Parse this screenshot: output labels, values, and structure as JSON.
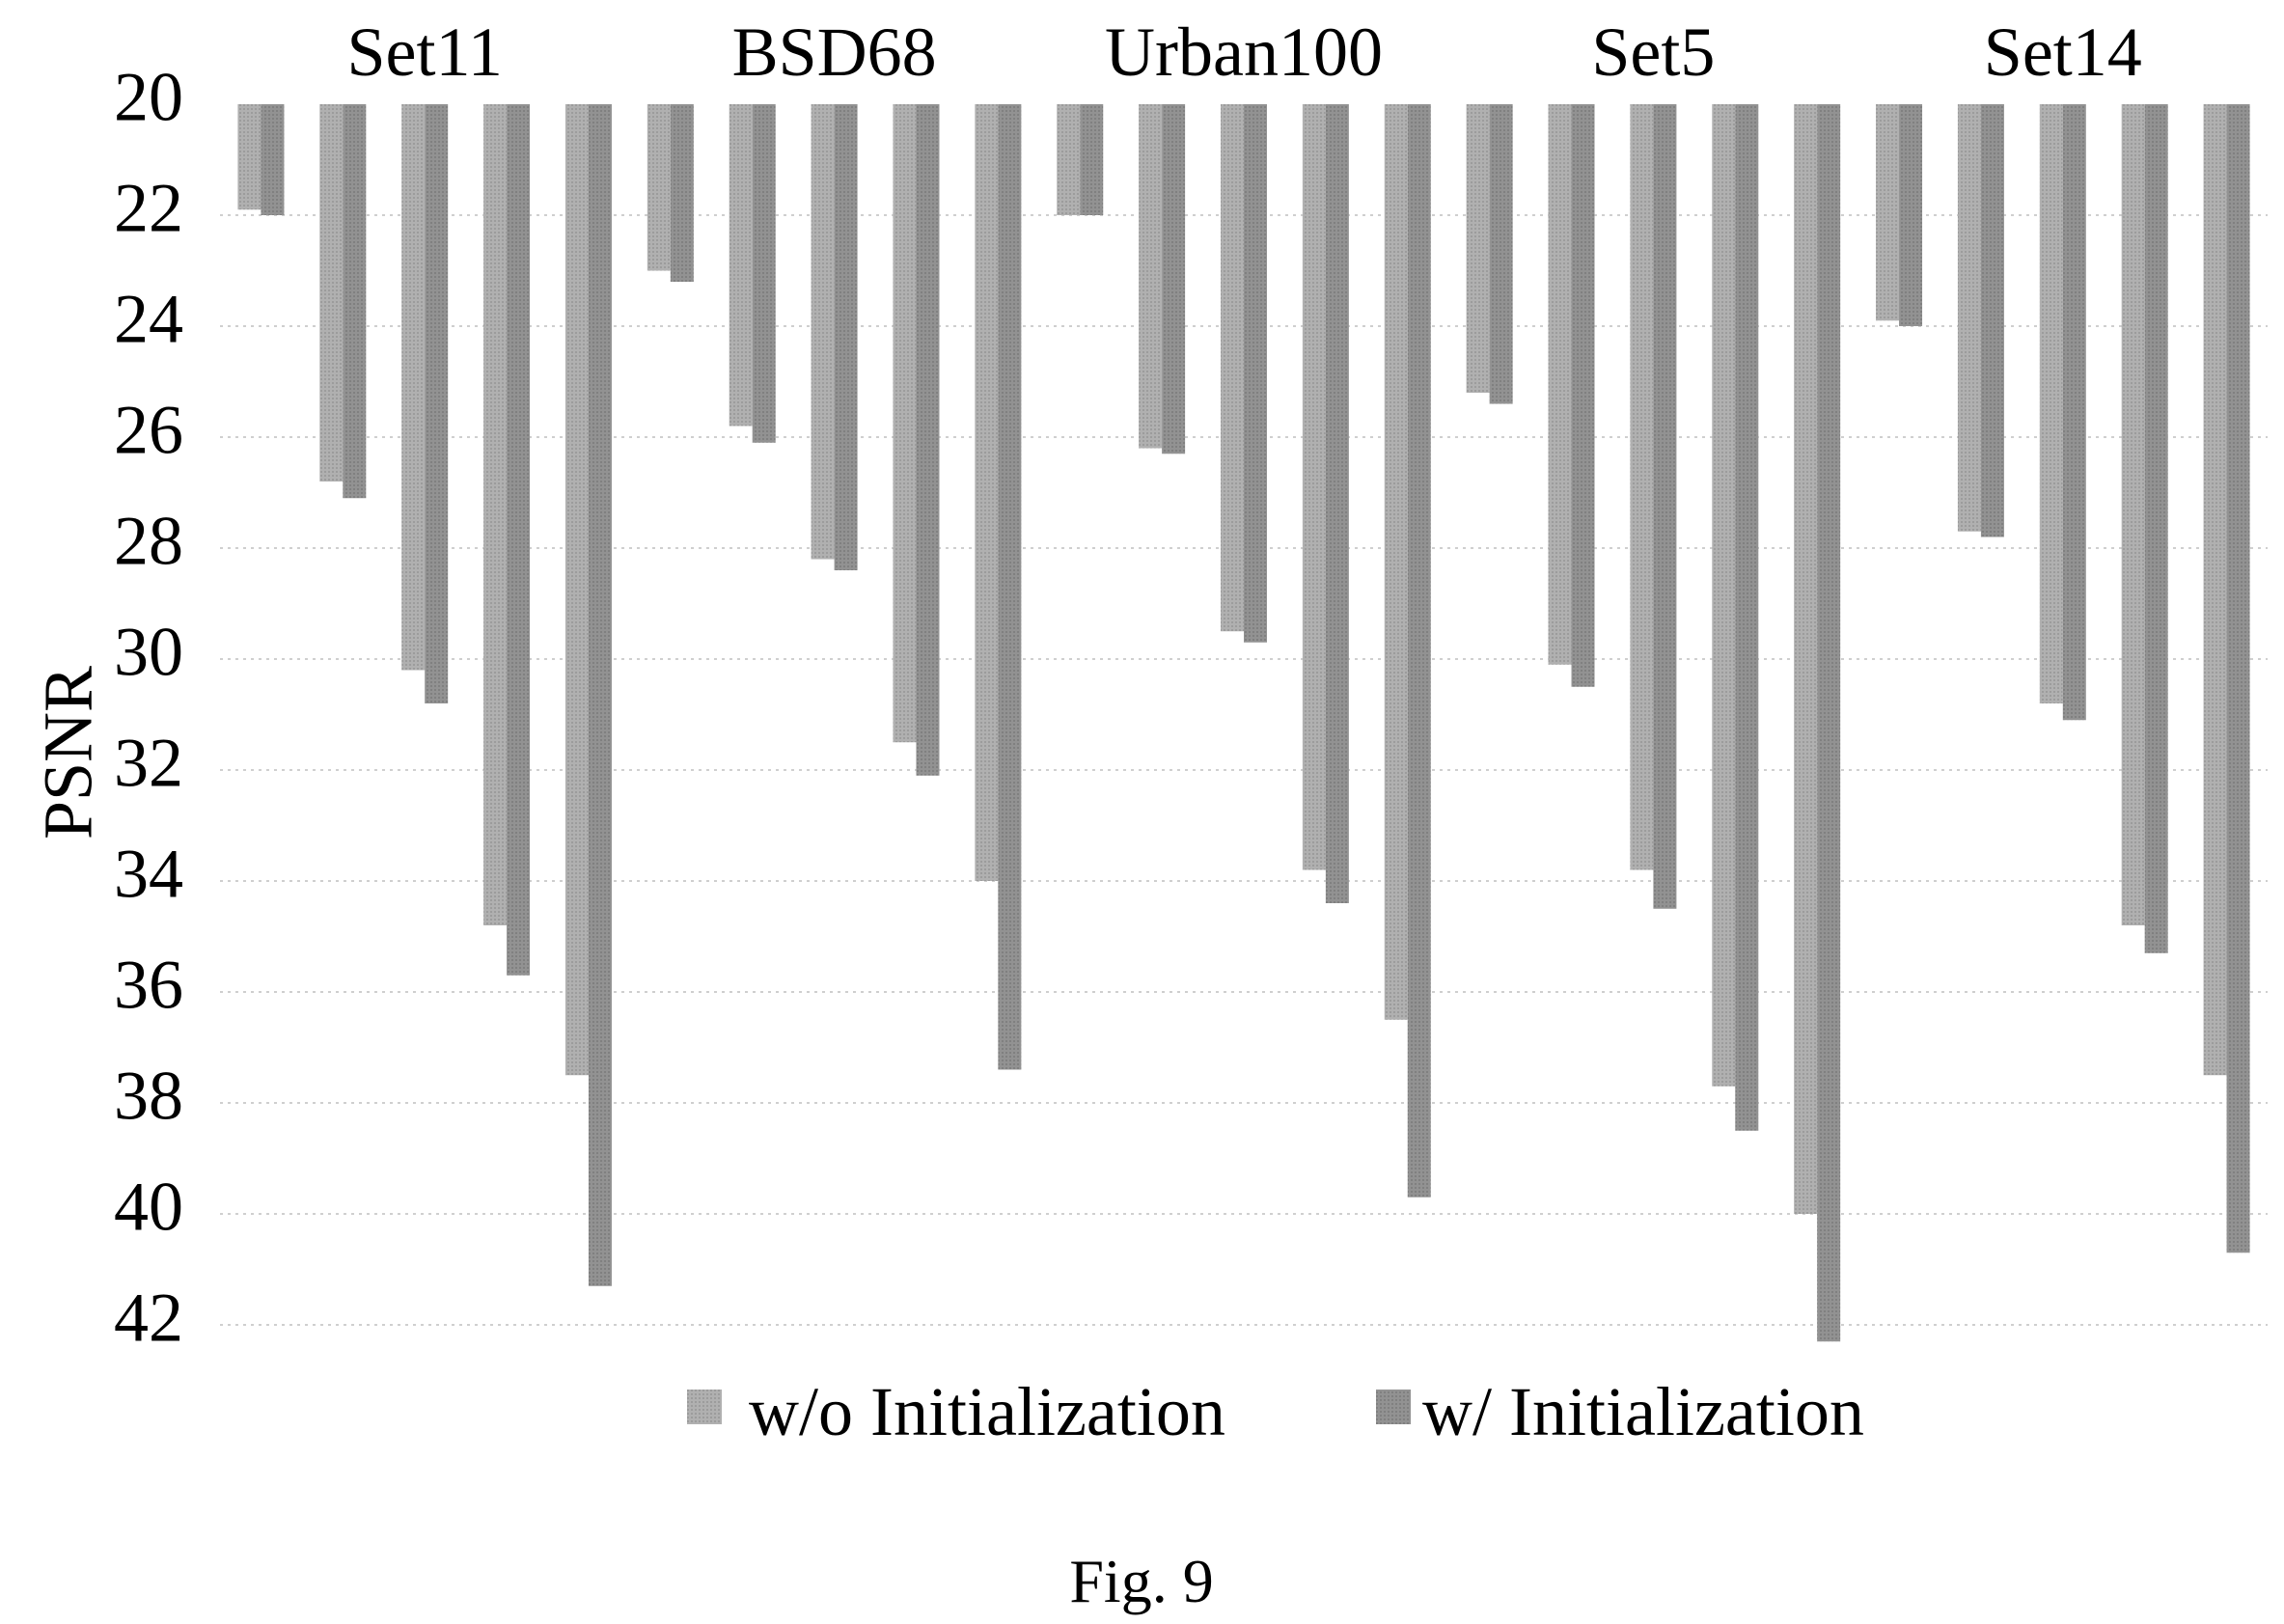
{
  "chart_data": {
    "type": "bar",
    "orientation": "inverted-y",
    "ylabel": "PSNR",
    "xlabel": "",
    "ylim": [
      20,
      42
    ],
    "yticks": [
      "20",
      "22",
      "24",
      "26",
      "28",
      "30",
      "32",
      "34",
      "36",
      "38",
      "40",
      "42"
    ],
    "grid": "horizontal dotted",
    "legend_position": "bottom",
    "groups": [
      "Set11",
      "BSD68",
      "Urban100",
      "Set5",
      "Set14"
    ],
    "series": [
      {
        "name": "w/o Initialization",
        "color": "#a8a8a8",
        "values": [
          [
            21.9,
            26.8,
            30.2,
            34.8,
            37.5
          ],
          [
            23.0,
            25.8,
            28.2,
            31.5,
            34.0
          ],
          [
            22.0,
            26.2,
            29.5,
            33.8,
            36.5
          ],
          [
            25.2,
            30.1,
            33.8,
            37.7,
            40.0
          ],
          [
            23.9,
            27.7,
            30.8,
            34.8,
            37.5
          ]
        ]
      },
      {
        "name": "w/ Initialization",
        "color": "#8f8f8f",
        "values": [
          [
            22.0,
            27.1,
            30.8,
            35.7,
            41.3
          ],
          [
            23.2,
            26.1,
            28.4,
            32.1,
            37.4
          ],
          [
            22.0,
            26.3,
            29.7,
            34.4,
            39.7
          ],
          [
            25.4,
            30.5,
            34.5,
            38.5,
            42.3
          ],
          [
            24.0,
            27.8,
            31.1,
            35.3,
            40.7
          ]
        ]
      }
    ]
  },
  "caption": "Fig. 9"
}
